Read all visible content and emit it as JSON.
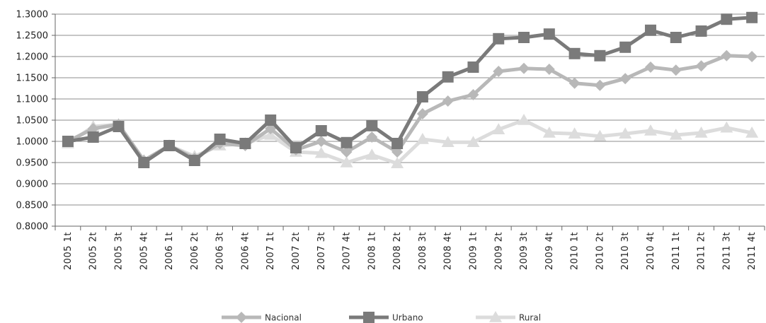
{
  "chart_data": {
    "type": "line",
    "title": "",
    "xlabel": "",
    "ylabel": "",
    "ylim": [
      0.8,
      1.3
    ],
    "ytick_values": [
      0.8,
      0.85,
      0.9,
      0.95,
      1.0,
      1.05,
      1.1,
      1.15,
      1.2,
      1.25,
      1.3
    ],
    "yticks": [
      "0.8000",
      "0.8500",
      "0.9000",
      "0.9500",
      "1.0000",
      "1.0500",
      "1.1000",
      "1.1500",
      "1.2000",
      "1.2500",
      "1.3000"
    ],
    "grid": true,
    "legend_position": "bottom",
    "categories": [
      "2005 1t",
      "2005 2t",
      "2005 3t",
      "2005 4t",
      "2006 1t",
      "2006 2t",
      "2006 3t",
      "2006 4t",
      "2007 1t",
      "2007 2t",
      "2007 3t",
      "2007 4t",
      "2008 1t",
      "2008 2t",
      "2008 3t",
      "2008 4t",
      "2009 1t",
      "2009 2t",
      "2009 3t",
      "2009 4t",
      "2010 1t",
      "2010 2t",
      "2010 3t",
      "2010 4t",
      "2011 1t",
      "2011 2t",
      "2011 3t",
      "2011 4t"
    ],
    "series": [
      {
        "name": "Nacional",
        "marker": "diamond",
        "color": "#b8b8b8",
        "values": [
          1.0,
          1.03,
          1.04,
          0.955,
          0.99,
          0.96,
          0.995,
          0.99,
          1.03,
          0.98,
          1.0,
          0.975,
          1.01,
          0.975,
          1.065,
          1.095,
          1.11,
          1.165,
          1.172,
          1.17,
          1.137,
          1.132,
          1.148,
          1.175,
          1.168,
          1.178,
          1.202,
          1.2
        ]
      },
      {
        "name": "Urbano",
        "marker": "square",
        "color": "#7a7a7a",
        "values": [
          1.0,
          1.01,
          1.035,
          0.95,
          0.99,
          0.955,
          1.005,
          0.995,
          1.05,
          0.985,
          1.025,
          0.997,
          1.037,
          0.995,
          1.105,
          1.152,
          1.175,
          1.242,
          1.245,
          1.253,
          1.207,
          1.202,
          1.222,
          1.262,
          1.245,
          1.26,
          1.288,
          1.292
        ]
      },
      {
        "name": "Rural",
        "marker": "triangle",
        "color": "#dcdcdc",
        "values": [
          0.995,
          1.035,
          1.04,
          0.955,
          0.99,
          0.965,
          0.99,
          0.995,
          1.015,
          0.975,
          0.972,
          0.95,
          0.968,
          0.948,
          1.005,
          0.998,
          0.998,
          1.028,
          1.05,
          1.02,
          1.018,
          1.012,
          1.018,
          1.025,
          1.015,
          1.02,
          1.032,
          1.02
        ]
      }
    ]
  }
}
